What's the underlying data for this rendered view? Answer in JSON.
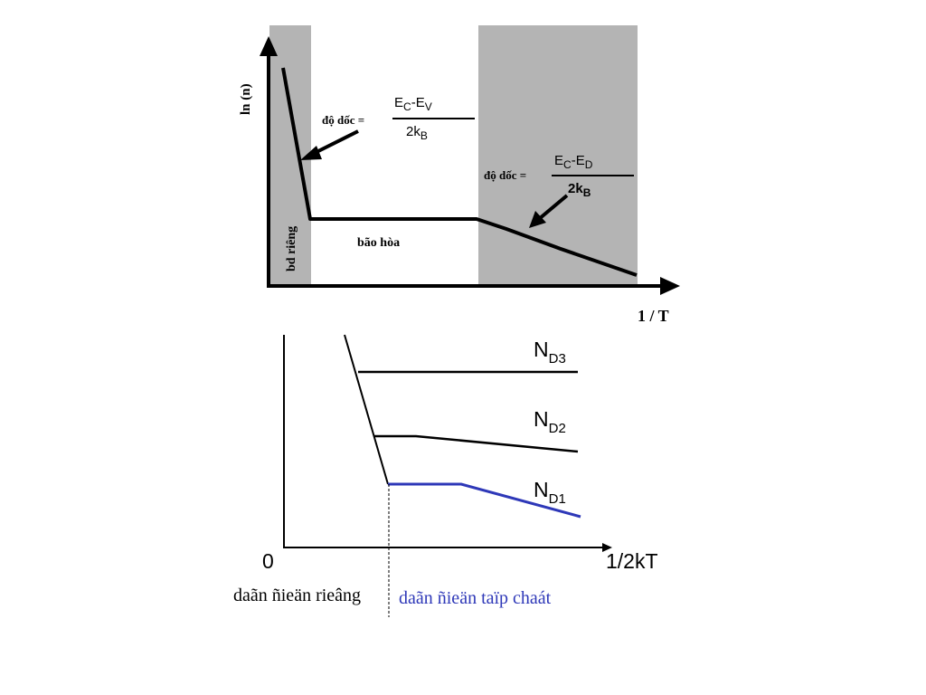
{
  "top_plot": {
    "y_axis_label": "ln (n)",
    "x_axis_label": "1 / T",
    "region_intrinsic": "bd riêng",
    "region_saturation": "bão hòa",
    "slope1": {
      "prefix": "độ dốc =",
      "num_e1": "E",
      "num_s1": "C",
      "num_dash": "-",
      "num_e2": "E",
      "num_s2": "V",
      "den_main": "2k",
      "den_sub": "B"
    },
    "slope2": {
      "prefix": "độ dốc =",
      "num_e1": "E",
      "num_s1": "C",
      "num_dash": "-",
      "num_e2": "E",
      "num_s2": "D",
      "den_main": "2k",
      "den_sub": "B"
    },
    "colors": {
      "shade": "#b4b4b4",
      "curve": "#000000"
    }
  },
  "bottom_plot": {
    "origin": "0",
    "x_axis_label": "1/2kT",
    "curves": [
      {
        "main": "N",
        "sub": "D3"
      },
      {
        "main": "N",
        "sub": "D2"
      },
      {
        "main": "N",
        "sub": "D1"
      }
    ],
    "caption_left": "daãn ñieän rieâng",
    "caption_right": "daãn ñieän taïp chaát",
    "colors": {
      "highlight": "#2e38b8",
      "curve": "#000000"
    }
  }
}
